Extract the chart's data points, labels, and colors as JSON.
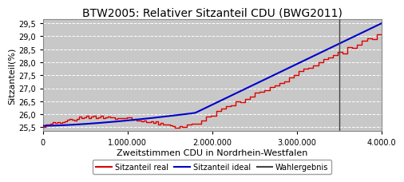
{
  "title": "BTW2005: Relativer Sitzanteil CDU (BWG2011)",
  "xlabel": "Zweitstimmen CDU in Nordrhein-Westfalen",
  "ylabel": "Sitzanteil(%)",
  "xlim": [
    0,
    4000000
  ],
  "ylim": [
    25.35,
    29.65
  ],
  "yticks": [
    25.5,
    26.0,
    26.5,
    27.0,
    27.5,
    28.0,
    28.5,
    29.0,
    29.5
  ],
  "xtick_values": [
    0,
    1000000,
    2000000,
    3000000,
    4000000
  ],
  "wahlergebnis_x": 3500000,
  "color_real": "#dd0000",
  "color_ideal": "#0000cc",
  "color_wahlergebnis": "#444444",
  "background_color": "#c8c8c8",
  "grid_color": "#ffffff",
  "legend_labels": [
    "Sitzanteil real",
    "Sitzanteil ideal",
    "Wahlergebnis"
  ]
}
